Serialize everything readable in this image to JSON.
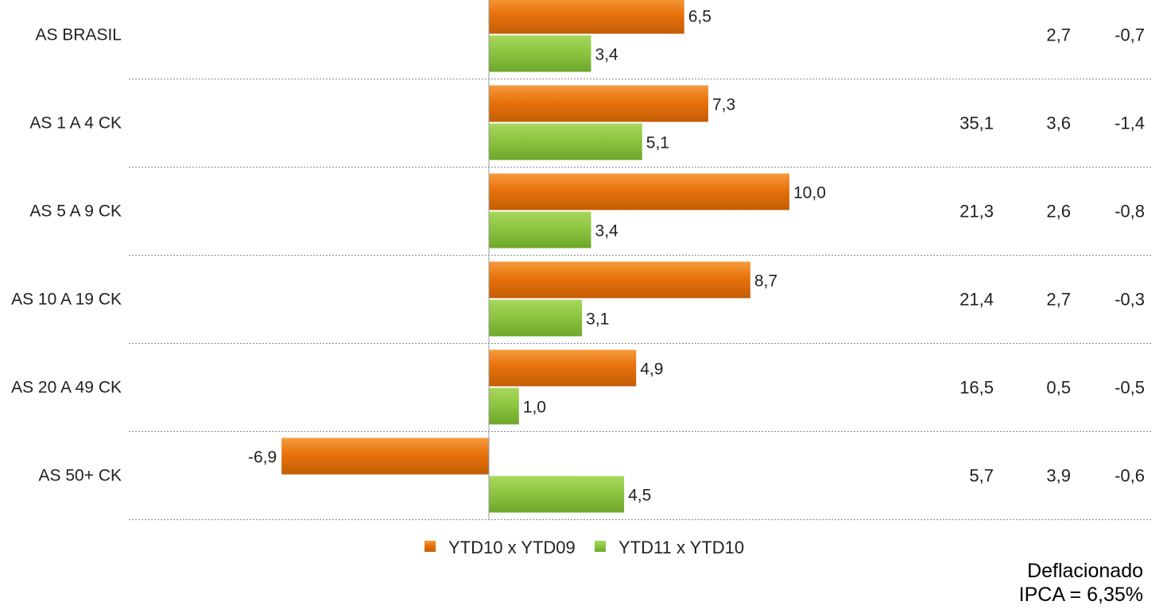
{
  "chart_data": {
    "type": "bar",
    "orientation": "horizontal",
    "categories": [
      "AS BRASIL",
      "AS 1 A 4 CK",
      "AS 5 A 9 CK",
      "AS 10 A 19 CK",
      "AS 20 A 49 CK",
      "AS 50+ CK"
    ],
    "series": [
      {
        "name": "YTD10 x YTD09",
        "color": "#e8720c",
        "values": [
          6.5,
          7.3,
          10.0,
          8.7,
          4.9,
          -6.9
        ],
        "labels": [
          "6,5",
          "7,3",
          "10,0",
          "8,7",
          "4,9",
          "-6,9"
        ]
      },
      {
        "name": "YTD11 x YTD10",
        "color": "#8dc63f",
        "values": [
          3.4,
          5.1,
          3.4,
          3.1,
          1.0,
          4.5
        ],
        "labels": [
          "3,4",
          "5,1",
          "3,4",
          "3,1",
          "1,0",
          "4,5"
        ]
      }
    ],
    "extra_columns": [
      [
        "",
        "35,1",
        "21,3",
        "21,4",
        "16,5",
        "5,7"
      ],
      [
        "2,7",
        "3,6",
        "2,6",
        "2,7",
        "0,5",
        "3,9"
      ],
      [
        "-0,7",
        "-1,4",
        "-0,8",
        "-0,3",
        "-0,5",
        "-0,6"
      ]
    ],
    "legend_position": "bottom",
    "grid": "dotted row separators"
  },
  "note": {
    "line1": "Deflacionado",
    "line2": "IPCA = 6,35%"
  }
}
